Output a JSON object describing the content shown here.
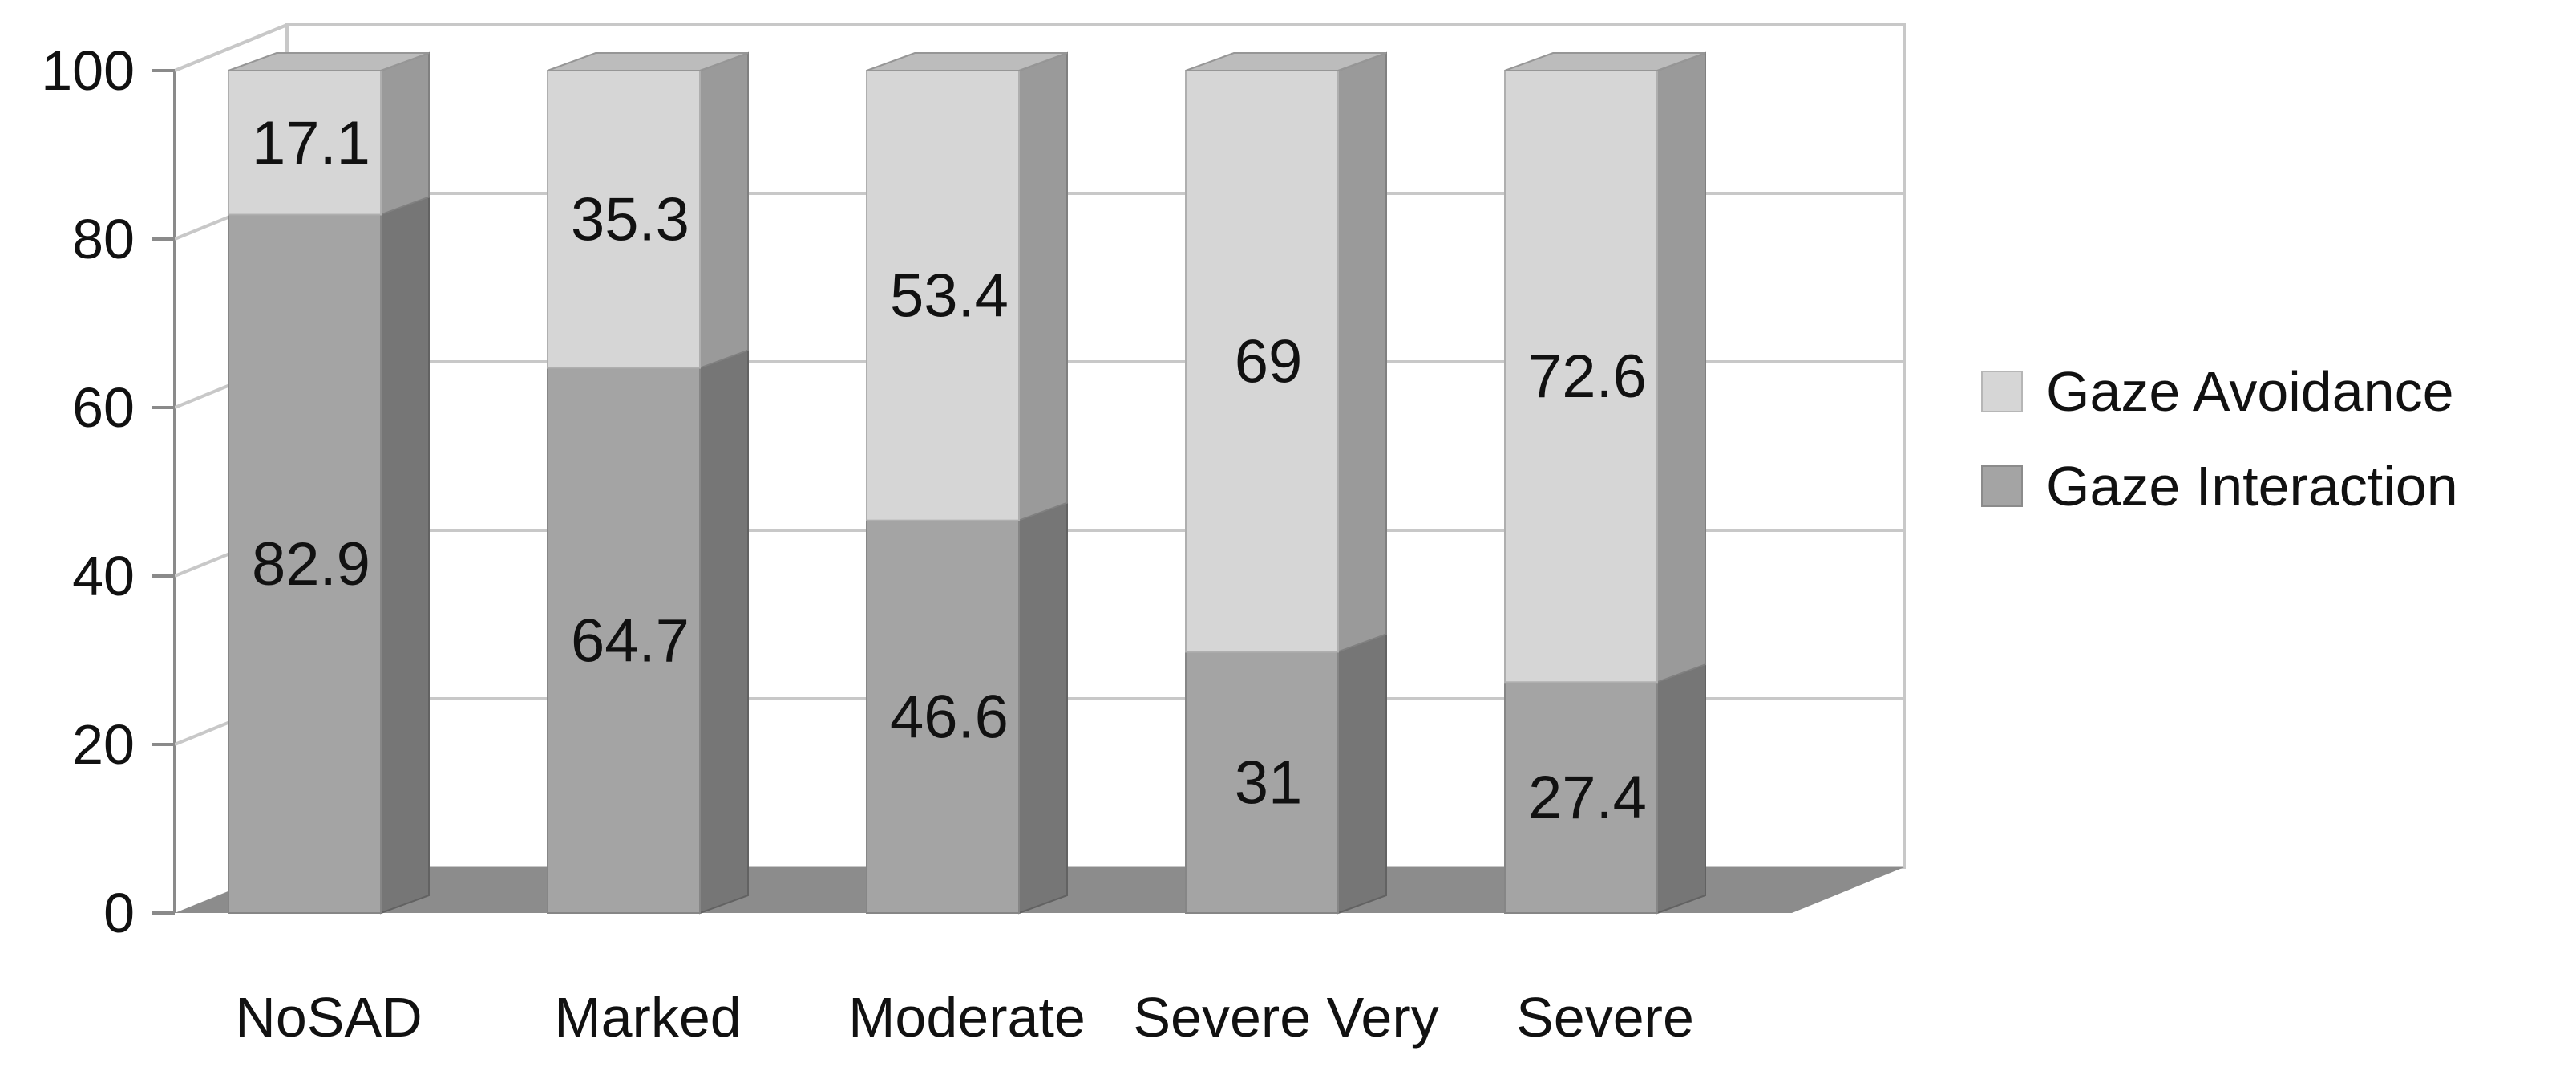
{
  "chart_data": {
    "type": "bar",
    "stacked": true,
    "style": "3d",
    "categories": [
      "NoSAD",
      "Marked",
      "Moderate",
      "Severe Very",
      "Severe"
    ],
    "series": [
      {
        "name": "Gaze Interaction",
        "values": [
          82.9,
          64.7,
          46.6,
          31,
          27.4
        ],
        "color": "#a4a4a4"
      },
      {
        "name": "Gaze Avoidance",
        "values": [
          17.1,
          35.3,
          53.4,
          69,
          72.6
        ],
        "color": "#d6d6d6"
      }
    ],
    "ylim": [
      0,
      100
    ],
    "yticks": [
      "0",
      "20",
      "40",
      "60",
      "80",
      "100"
    ],
    "grid": true,
    "legend_position": "right",
    "legend_order": [
      "Gaze Avoidance",
      "Gaze Interaction"
    ],
    "title": "",
    "xlabel": "",
    "ylabel": ""
  }
}
